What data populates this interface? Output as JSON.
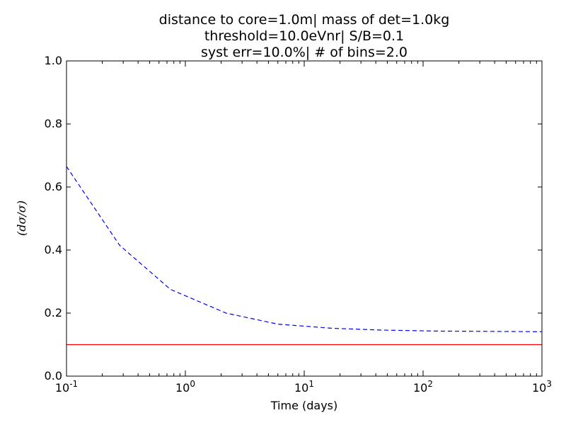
{
  "chart_data": {
    "type": "line",
    "title_lines": [
      "distance to core=1.0m| mass of det=1.0kg",
      "threshold=10.0eVnr| S/B=0.1",
      "syst err=10.0%| # of bins=2.0"
    ],
    "xlabel": "Time (days)",
    "ylabel": "(dσ/σ)",
    "xscale": "log",
    "xlim": [
      0.1,
      1000
    ],
    "ylim": [
      0,
      1.0
    ],
    "x_ticks": [
      {
        "value": 0.1,
        "base": "10",
        "exp": "-1"
      },
      {
        "value": 1,
        "base": "10",
        "exp": "0"
      },
      {
        "value": 10,
        "base": "10",
        "exp": "1"
      },
      {
        "value": 100,
        "base": "10",
        "exp": "2"
      },
      {
        "value": 1000,
        "base": "10",
        "exp": "3"
      }
    ],
    "y_ticks": [
      "0.0",
      "0.2",
      "0.4",
      "0.6",
      "0.8",
      "1.0"
    ],
    "grid": false,
    "series": [
      {
        "style": "dashed",
        "color": "#0000ff",
        "x": [
          0.1,
          0.28,
          0.75,
          2.2,
          6,
          17,
          45,
          130,
          350,
          1000
        ],
        "y": [
          0.665,
          0.415,
          0.275,
          0.2,
          0.165,
          0.152,
          0.146,
          0.143,
          0.142,
          0.141
        ]
      },
      {
        "style": "solid",
        "color": "#ff0000",
        "x": [
          0.1,
          1000
        ],
        "y": [
          0.1,
          0.1
        ]
      }
    ]
  }
}
